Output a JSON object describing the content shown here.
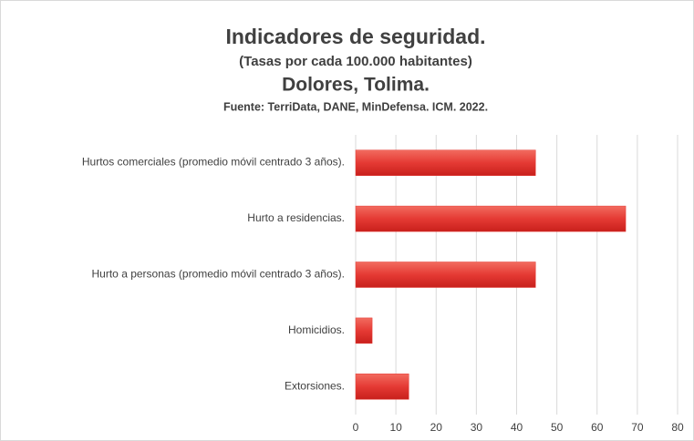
{
  "chart_data": {
    "type": "bar",
    "orientation": "horizontal",
    "title": "Indicadores  de seguridad.",
    "subtitle": "(Tasas por cada 100.000 habitantes)",
    "location": "Dolores, Tolima.",
    "source": "Fuente: TerriData, DANE, MinDefensa. ICM. 2022.",
    "categories": [
      "Hurtos comerciales (promedio móvil centrado 3 años).",
      "Hurto a residencias.",
      "Hurto a personas (promedio móvil centrado 3 años).",
      "Homicidios.",
      "Extorsiones."
    ],
    "values": [
      44.7,
      67.1,
      44.7,
      4.1,
      13.2
    ],
    "color": "#e53a34",
    "xlim": [
      0,
      80
    ],
    "xticks": [
      0,
      10,
      20,
      30,
      40,
      50,
      60,
      70,
      80
    ],
    "grid": true
  }
}
